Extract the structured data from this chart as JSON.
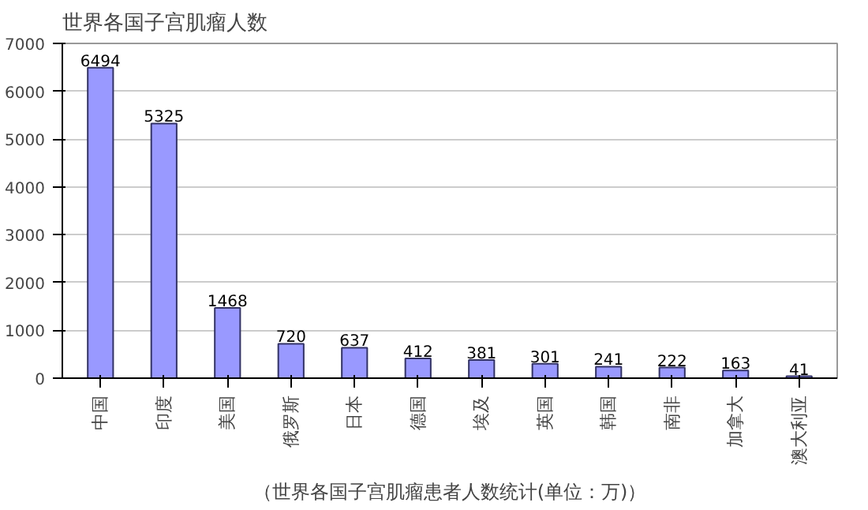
{
  "chart_data": {
    "type": "bar",
    "title": "世界各国子宫肌瘤人数",
    "categories": [
      "中国",
      "印度",
      "美国",
      "俄罗斯",
      "日本",
      "德国",
      "埃及",
      "英国",
      "韩国",
      "南非",
      "加拿大",
      "澳大利亚"
    ],
    "values": [
      6494,
      5325,
      1468,
      720,
      637,
      412,
      381,
      301,
      241,
      222,
      163,
      41
    ],
    "color": "#9999ff",
    "ylim": [
      0,
      7000
    ],
    "yticks": [
      0,
      1000,
      2000,
      3000,
      4000,
      5000,
      6000,
      7000
    ],
    "grid": "y",
    "data_labels": true,
    "annotations": [
      "（世界各国子宫肌瘤患者人数统计(单位：万)）"
    ]
  }
}
